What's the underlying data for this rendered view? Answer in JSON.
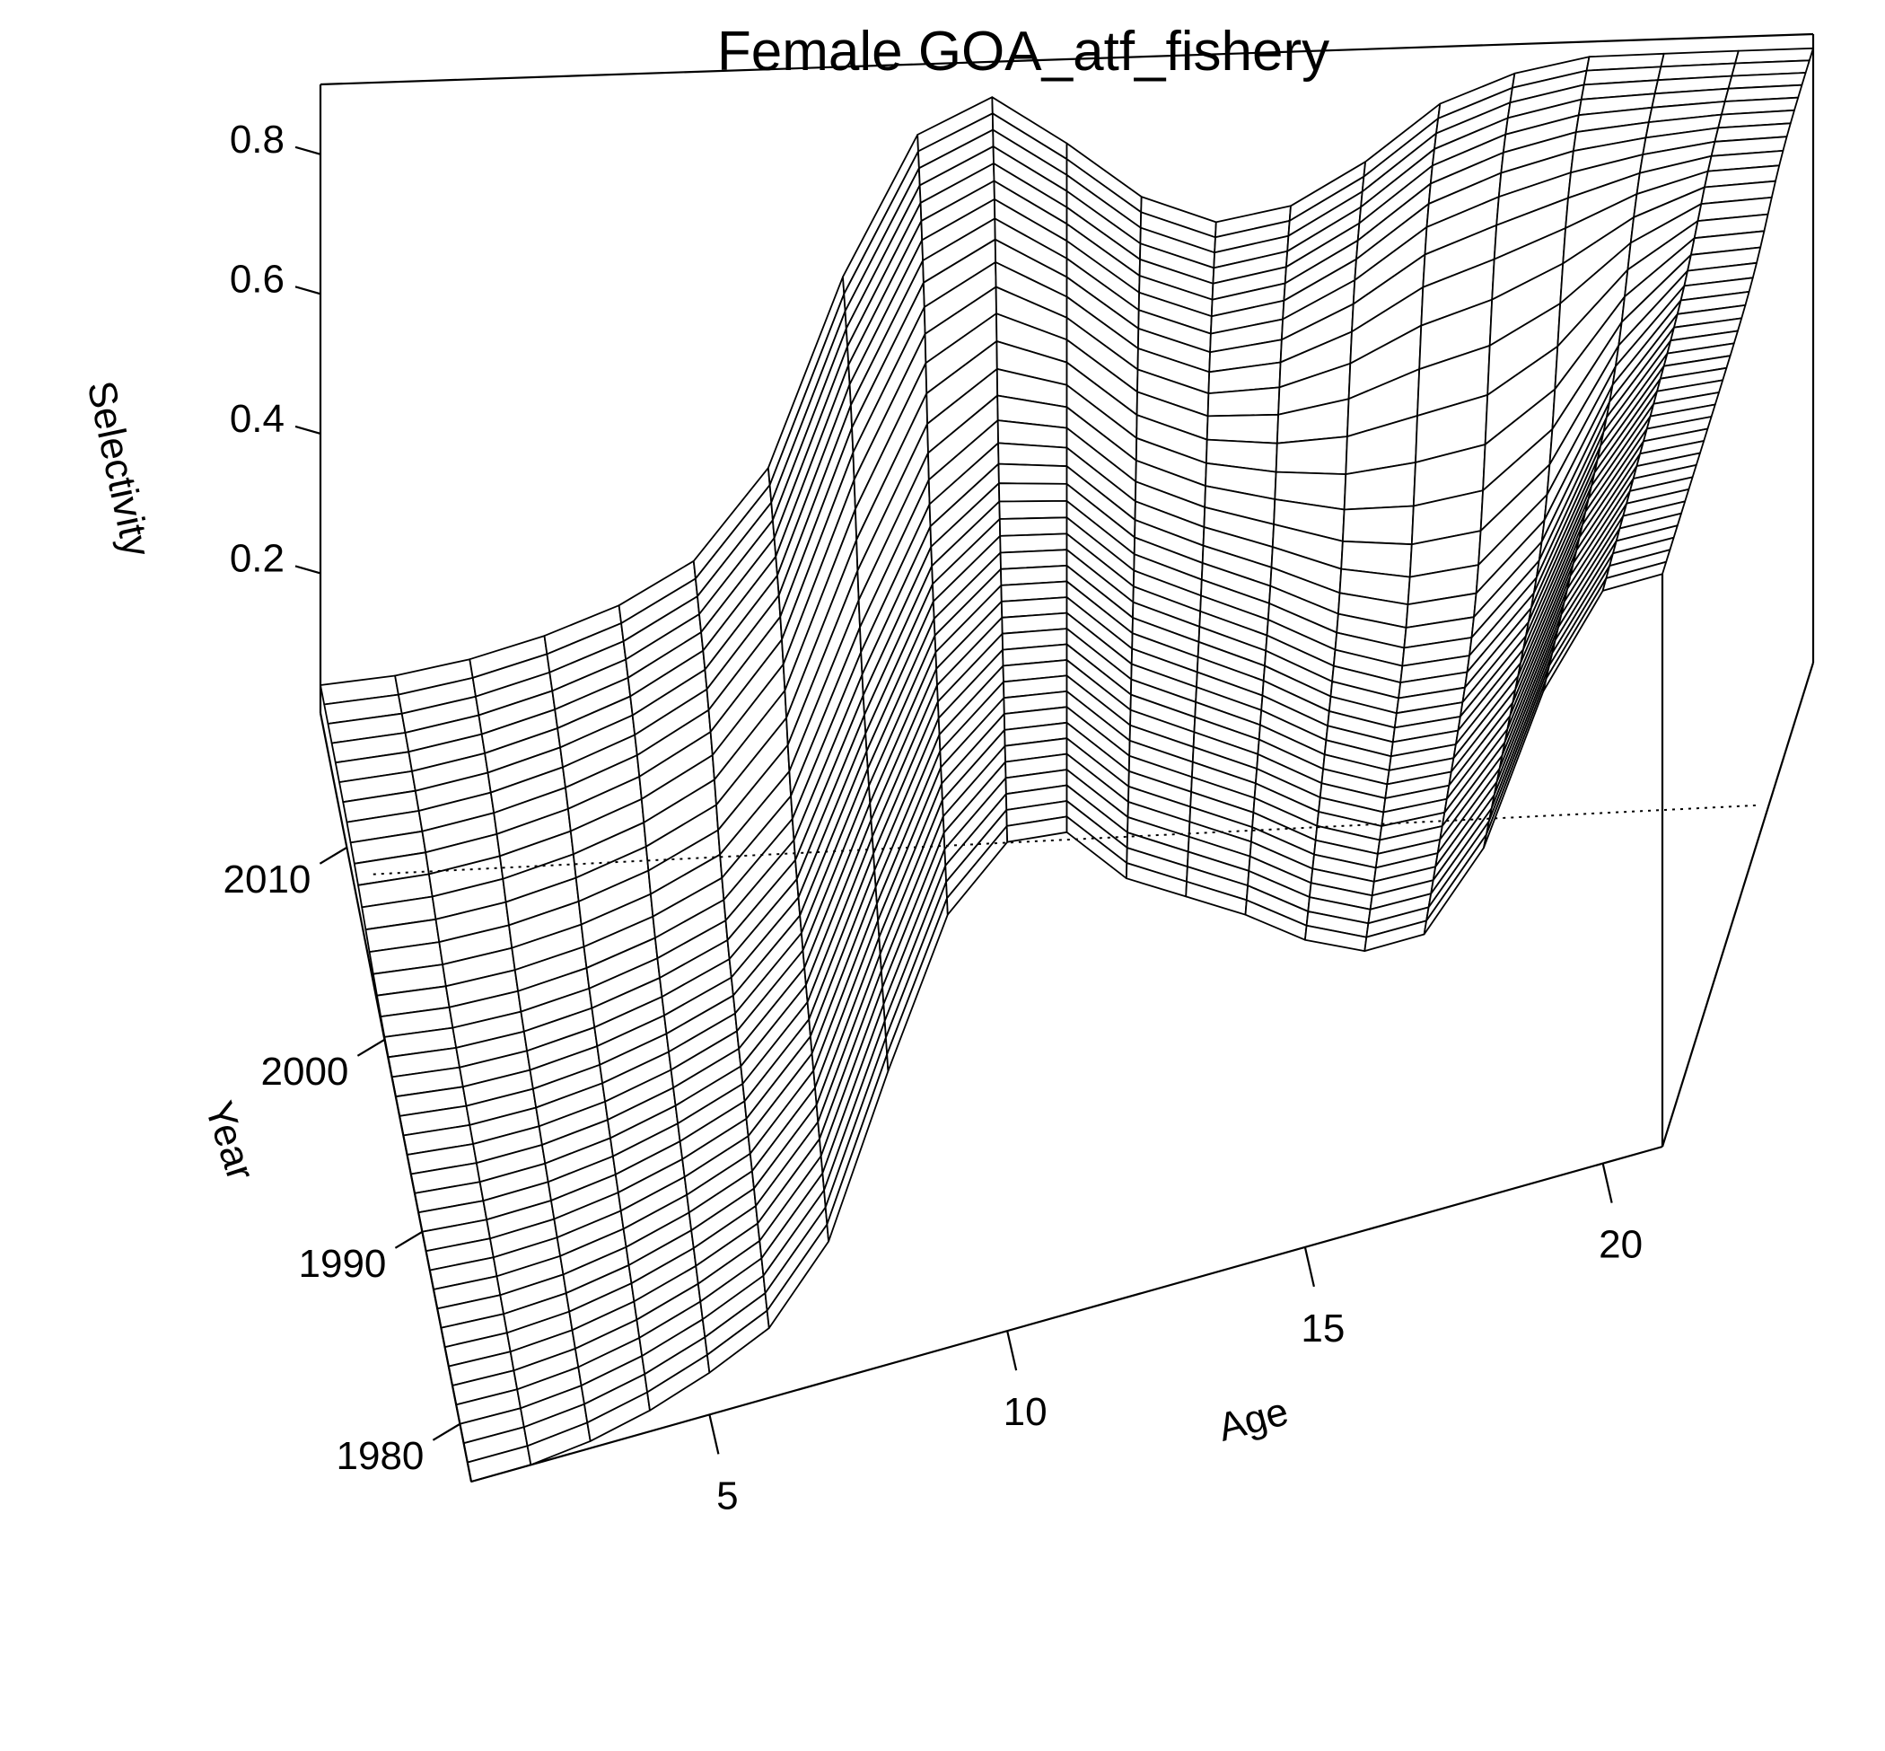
{
  "chart_data": {
    "type": "surface",
    "title": "Female GOA_atf_fishery",
    "xlabel": "Age",
    "ylabel": "Year",
    "zlabel": "Selectivity",
    "x_ticks": [
      "5",
      "10",
      "15",
      "20"
    ],
    "y_ticks": [
      "1980",
      "1990",
      "2000",
      "2010"
    ],
    "z_ticks": [
      "0.2",
      "0.4",
      "0.6",
      "0.8"
    ],
    "x_range": [
      1,
      21
    ],
    "y_range": [
      1977,
      2017
    ],
    "z_range": [
      0,
      0.9
    ],
    "ages": [
      1,
      2,
      3,
      4,
      5,
      6,
      7,
      8,
      9,
      10,
      11,
      12,
      13,
      14,
      15,
      16,
      17,
      18,
      19,
      20,
      21
    ],
    "selectivity_early_period": [
      0.0,
      0.0,
      0.01,
      0.03,
      0.06,
      0.1,
      0.2,
      0.42,
      0.62,
      0.7,
      0.69,
      0.6,
      0.55,
      0.5,
      0.44,
      0.4,
      0.4,
      0.5,
      0.7,
      0.82,
      0.82
    ],
    "selectivity_late_period": [
      0.04,
      0.05,
      0.07,
      0.1,
      0.14,
      0.2,
      0.33,
      0.6,
      0.8,
      0.85,
      0.78,
      0.7,
      0.66,
      0.68,
      0.74,
      0.82,
      0.86,
      0.88,
      0.88,
      0.88,
      0.88
    ],
    "grid": false
  }
}
